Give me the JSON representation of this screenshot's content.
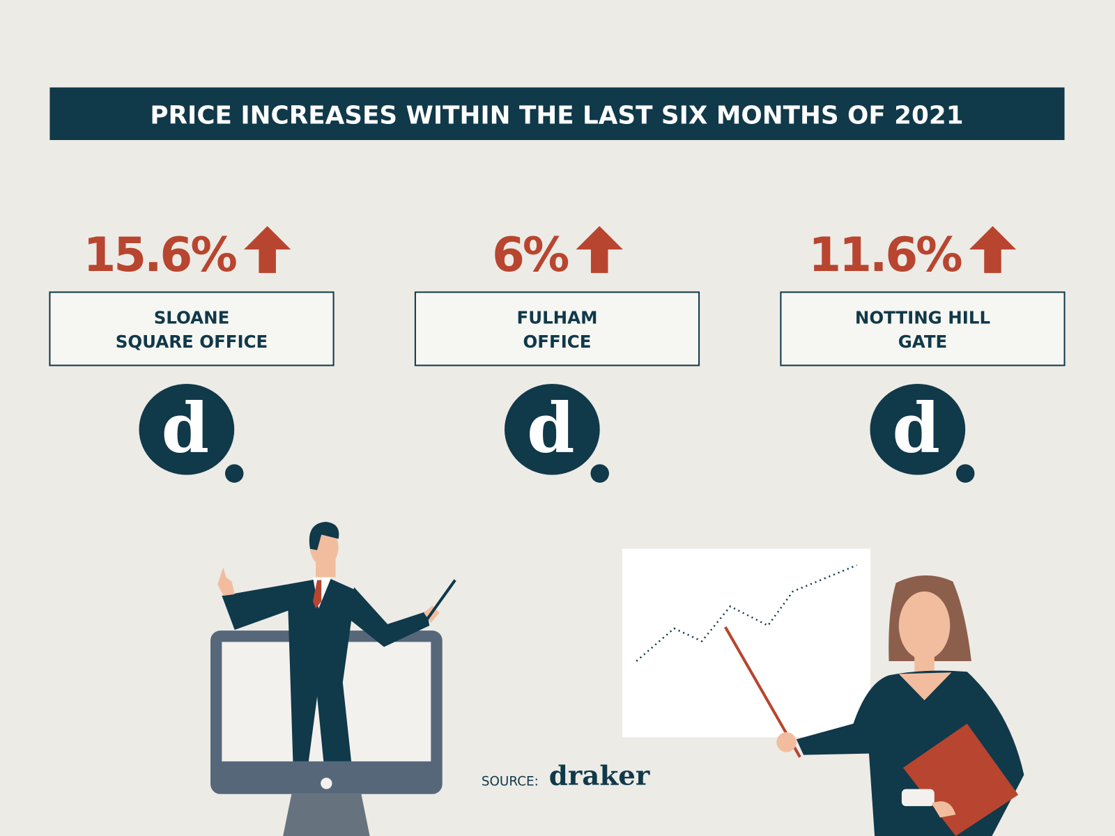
{
  "header": {
    "title": "PRICE INCREASES WITHIN THE LAST SIX MONTHS OF 2021"
  },
  "stats": [
    {
      "value": "15.6%",
      "label": [
        "SLOANE",
        "SQUARE OFFICE"
      ]
    },
    {
      "value": "6%",
      "label": [
        "FULHAM",
        "OFFICE"
      ]
    },
    {
      "value": "11.6%",
      "label": [
        "NOTTING HILL",
        "GATE"
      ]
    }
  ],
  "logo_letter": "d",
  "source": {
    "prefix": "SOURCE:",
    "brand": "draker"
  }
}
